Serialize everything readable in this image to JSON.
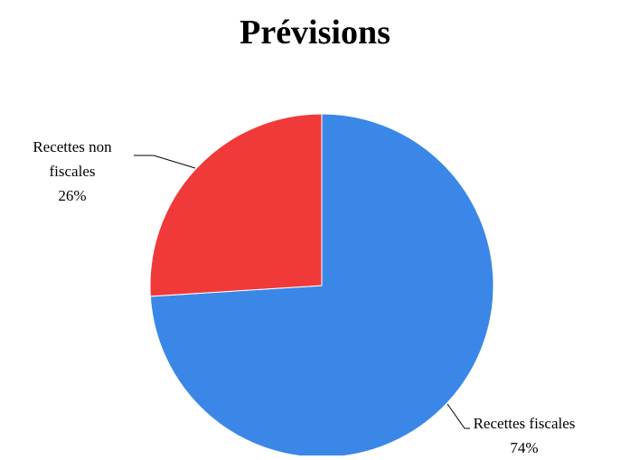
{
  "chart_data": {
    "type": "pie",
    "title": "Prévisions",
    "categories": [
      "Recettes fiscales",
      "Recettes non fiscales"
    ],
    "values": [
      74,
      26
    ],
    "value_labels": [
      "74%",
      "26%"
    ],
    "colors": [
      "#3a87e8",
      "#f03a3a"
    ]
  }
}
